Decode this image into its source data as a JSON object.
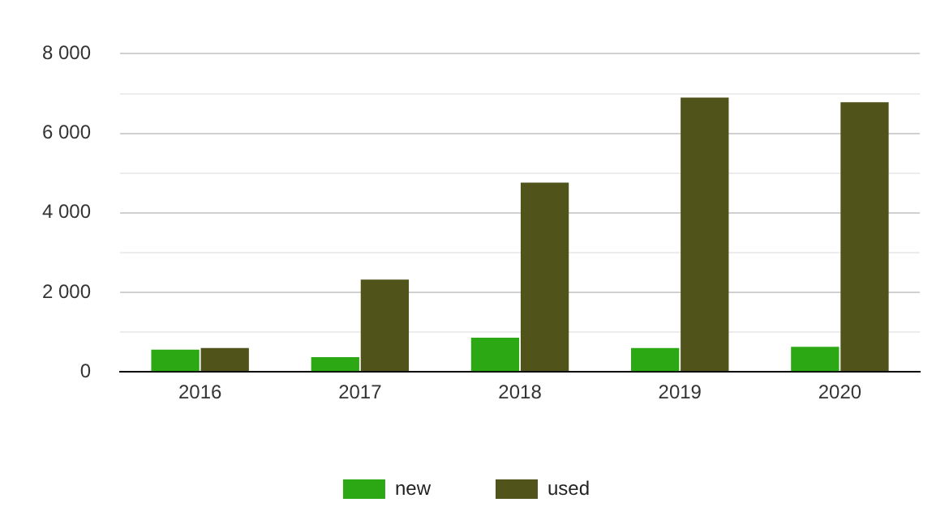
{
  "chart_data": {
    "type": "bar",
    "categories": [
      "2016",
      "2017",
      "2018",
      "2019",
      "2020"
    ],
    "series": [
      {
        "name": "new",
        "color": "#2ca814",
        "values": [
          560,
          370,
          860,
          600,
          630
        ]
      },
      {
        "name": "used",
        "color": "#50531a",
        "values": [
          600,
          2320,
          4760,
          6900,
          6780
        ]
      }
    ],
    "ylim": [
      0,
      8000
    ],
    "yticks": [
      {
        "value": 0,
        "label": "0"
      },
      {
        "value": 1000,
        "label": null
      },
      {
        "value": 2000,
        "label": "2 000"
      },
      {
        "value": 3000,
        "label": null
      },
      {
        "value": 4000,
        "label": "4 000"
      },
      {
        "value": 5000,
        "label": null
      },
      {
        "value": 6000,
        "label": "6 000"
      },
      {
        "value": 7000,
        "label": null
      },
      {
        "value": 8000,
        "label": "8 000"
      }
    ],
    "grid": "y",
    "legend": "bottom"
  }
}
